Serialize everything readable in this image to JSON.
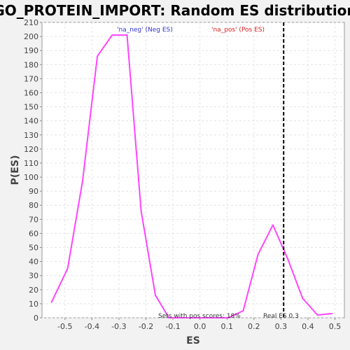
{
  "chart_data": {
    "type": "line",
    "title": "GO_PROTEIN_IMPORT: Random ES distribution",
    "xlabel": "ES",
    "ylabel": "P(ES)",
    "xlim": [
      -0.585,
      0.535
    ],
    "ylim": [
      0,
      210
    ],
    "x_ticks": [
      "-0.5",
      "-0.4",
      "-0.3",
      "-0.2",
      "-0.1",
      "0.0",
      "0.1",
      "0.2",
      "0.3",
      "0.4",
      "0.5"
    ],
    "y_ticks": [
      "0",
      "10",
      "20",
      "30",
      "40",
      "50",
      "60",
      "70",
      "80",
      "90",
      "100",
      "110",
      "120",
      "130",
      "140",
      "150",
      "160",
      "170",
      "180",
      "190",
      "200",
      "210"
    ],
    "grid": true,
    "series": [
      {
        "color": "#ff44ff",
        "x": [
          -0.55,
          -0.49,
          -0.435,
          -0.38,
          -0.325,
          -0.27,
          -0.218,
          -0.165,
          -0.115,
          -0.06,
          -0.005,
          0.05,
          0.105,
          0.16,
          0.215,
          0.27,
          0.325,
          0.38,
          0.435,
          0.49
        ],
        "y": [
          11,
          35,
          97,
          186,
          201,
          201,
          76,
          16,
          0,
          0,
          0,
          0,
          0,
          5,
          45,
          66,
          42,
          14,
          2,
          3
        ]
      }
    ],
    "legend": [
      {
        "label": "'na_neg' (Neg ES)",
        "color": "#3333cc"
      },
      {
        "label": "'na_pos' (Pos ES)",
        "color": "#dd2222"
      }
    ],
    "real_es": 0.31,
    "annotations": {
      "pos_scores": "Sets with pos scores: 18%",
      "real_es": "Real ES 0.3"
    }
  }
}
